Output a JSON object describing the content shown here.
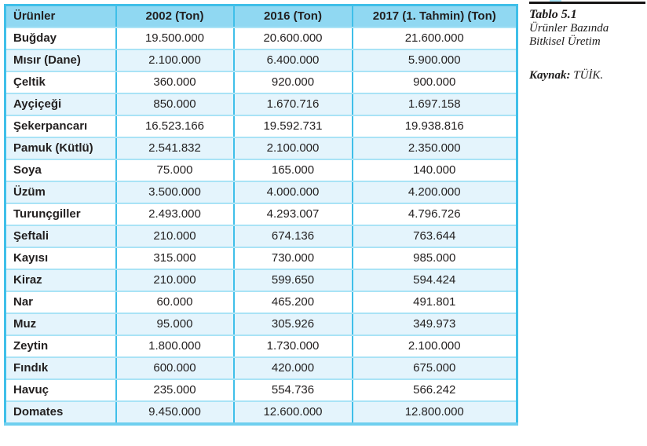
{
  "annotation": {
    "table_label": "Tablo 5.1",
    "caption": "Ürünler Bazında Bitkisel Üretim",
    "source_label": "Kaynak:",
    "source_value": "TÜİK."
  },
  "table": {
    "columns": [
      "Ürünler",
      "2002 (Ton)",
      "2016 (Ton)",
      "2017 (1. Tahmin) (Ton)"
    ],
    "rows": [
      {
        "name": "Buğday",
        "values": [
          "19.500.000",
          "20.600.000",
          "21.600.000"
        ]
      },
      {
        "name": "Mısır (Dane)",
        "values": [
          "2.100.000",
          "6.400.000",
          "5.900.000"
        ]
      },
      {
        "name": "Çeltik",
        "values": [
          "360.000",
          "920.000",
          "900.000"
        ]
      },
      {
        "name": "Ayçiçeği",
        "values": [
          "850.000",
          "1.670.716",
          "1.697.158"
        ]
      },
      {
        "name": "Şekerpancarı",
        "values": [
          "16.523.166",
          "19.592.731",
          "19.938.816"
        ]
      },
      {
        "name": "Pamuk (Kütlü)",
        "values": [
          "2.541.832",
          "2.100.000",
          "2.350.000"
        ]
      },
      {
        "name": "Soya",
        "values": [
          "75.000",
          "165.000",
          "140.000"
        ]
      },
      {
        "name": "Üzüm",
        "values": [
          "3.500.000",
          "4.000.000",
          "4.200.000"
        ]
      },
      {
        "name": "Turunçgiller",
        "values": [
          "2.493.000",
          "4.293.007",
          "4.796.726"
        ]
      },
      {
        "name": "Şeftali",
        "values": [
          "210.000",
          "674.136",
          "763.644"
        ]
      },
      {
        "name": "Kayısı",
        "values": [
          "315.000",
          "730.000",
          "985.000"
        ]
      },
      {
        "name": "Kiraz",
        "values": [
          "210.000",
          "599.650",
          "594.424"
        ]
      },
      {
        "name": "Nar",
        "values": [
          "60.000",
          "465.200",
          "491.801"
        ]
      },
      {
        "name": "Muz",
        "values": [
          "95.000",
          "305.926",
          "349.973"
        ]
      },
      {
        "name": "Zeytin",
        "values": [
          "1.800.000",
          "1.730.000",
          "2.100.000"
        ]
      },
      {
        "name": "Fındık",
        "values": [
          "600.000",
          "420.000",
          "675.000"
        ]
      },
      {
        "name": "Havuç",
        "values": [
          "235.000",
          "554.736",
          "566.242"
        ]
      },
      {
        "name": "Domates",
        "values": [
          "9.450.000",
          "12.600.000",
          "12.800.000"
        ]
      }
    ]
  },
  "colors": {
    "header_bg": "#90d8f2",
    "row_tint": "#e4f4fc",
    "vertical_border": "#3fbfe9",
    "horizontal_border": "#a9e3f6",
    "bottom_border": "#6fcfef",
    "text": "#221f1f"
  }
}
